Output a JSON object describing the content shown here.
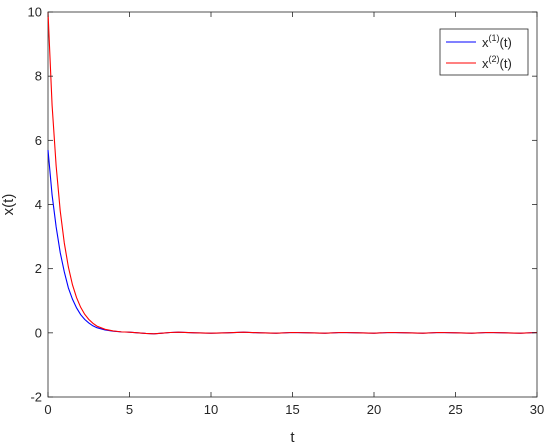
{
  "chart_data": {
    "type": "line",
    "xlabel": "t",
    "ylabel": "x(t)",
    "xlim": [
      0,
      30
    ],
    "ylim": [
      -2,
      10
    ],
    "xticks": [
      "0",
      "5",
      "10",
      "15",
      "20",
      "25",
      "30"
    ],
    "yticks": [
      "-2",
      "0",
      "2",
      "4",
      "6",
      "8",
      "10"
    ],
    "grid": false,
    "legend_position": "top-right",
    "series": [
      {
        "name_base": "x",
        "name_sup": "(1)",
        "name_suffix": "(t)",
        "color": "#0000ff",
        "x": [
          0,
          0.25,
          0.5,
          0.75,
          1.0,
          1.25,
          1.5,
          1.75,
          2.0,
          2.25,
          2.5,
          2.75,
          3.0,
          3.5,
          4.0,
          4.5,
          5.0,
          5.5,
          6.0,
          6.5,
          7.0,
          7.5,
          8.0,
          9.0,
          10.0,
          11.0,
          12.0,
          13.0,
          14.0,
          15.0,
          16.0,
          17.0,
          18.0,
          19.0,
          20.0,
          21.0,
          22.0,
          23.0,
          24.0,
          25.0,
          26.0,
          27.0,
          28.0,
          29.0,
          30.0
        ],
        "values": [
          5.7,
          4.3,
          3.3,
          2.5,
          1.9,
          1.4,
          1.05,
          0.78,
          0.57,
          0.42,
          0.31,
          0.22,
          0.16,
          0.09,
          0.05,
          0.03,
          0.02,
          0.0,
          -0.02,
          -0.03,
          -0.01,
          0.01,
          0.02,
          0.0,
          -0.01,
          0.0,
          0.02,
          0.0,
          -0.01,
          0.01,
          0.0,
          -0.01,
          0.01,
          0.0,
          -0.01,
          0.01,
          0.0,
          -0.01,
          0.01,
          0.0,
          -0.01,
          0.01,
          0.0,
          -0.01,
          0.01
        ]
      },
      {
        "name_base": "x",
        "name_sup": "(2)",
        "name_suffix": "(t)",
        "color": "#ff0000",
        "x": [
          0,
          0.25,
          0.5,
          0.75,
          1.0,
          1.25,
          1.5,
          1.75,
          2.0,
          2.25,
          2.5,
          2.75,
          3.0,
          3.5,
          4.0,
          4.5,
          5.0,
          5.5,
          6.0,
          6.5,
          7.0,
          7.5,
          8.0,
          9.0,
          10.0,
          11.0,
          12.0,
          13.0,
          14.0,
          15.0,
          16.0,
          17.0,
          18.0,
          19.0,
          20.0,
          21.0,
          22.0,
          23.0,
          24.0,
          25.0,
          26.0,
          27.0,
          28.0,
          29.0,
          30.0
        ],
        "values": [
          10.0,
          7.1,
          5.2,
          3.8,
          2.8,
          2.05,
          1.5,
          1.1,
          0.8,
          0.58,
          0.42,
          0.3,
          0.21,
          0.11,
          0.06,
          0.03,
          0.02,
          0.0,
          -0.02,
          -0.03,
          -0.01,
          0.01,
          0.02,
          0.0,
          -0.01,
          0.0,
          0.02,
          0.0,
          -0.01,
          0.01,
          0.0,
          -0.01,
          0.01,
          0.0,
          -0.01,
          0.01,
          0.0,
          -0.01,
          0.01,
          0.0,
          -0.01,
          0.01,
          0.0,
          -0.01,
          0.01
        ]
      }
    ]
  }
}
